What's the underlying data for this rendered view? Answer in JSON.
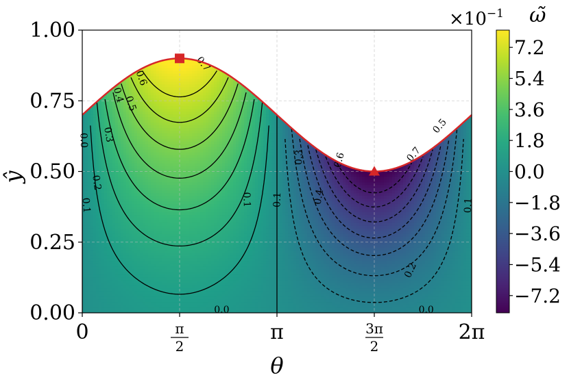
{
  "chart_data": {
    "type": "heatmap",
    "xlabel": "θ",
    "ylabel": "ŷ",
    "xlim": [
      0,
      6.283185307
    ],
    "ylim": [
      0,
      1.0
    ],
    "x_ticks": [
      {
        "value": 0,
        "label": "0",
        "kind": "plain"
      },
      {
        "value": 1.570796327,
        "num": "π",
        "den": "2",
        "kind": "frac"
      },
      {
        "value": 3.141592654,
        "label": "π",
        "kind": "plain"
      },
      {
        "value": 4.71238898,
        "num": "3π",
        "den": "2",
        "kind": "frac"
      },
      {
        "value": 6.283185307,
        "label": "2π",
        "kind": "plain"
      }
    ],
    "y_ticks": [
      {
        "value": 0.0,
        "label": "0.00"
      },
      {
        "value": 0.25,
        "label": "0.25"
      },
      {
        "value": 0.5,
        "label": "0.50"
      },
      {
        "value": 0.75,
        "label": "0.75"
      },
      {
        "value": 1.0,
        "label": "1.00"
      }
    ],
    "grid": true,
    "colormap": "viridis",
    "boundary": {
      "mean": 0.7,
      "amplitude": 0.2,
      "color": "#d62728"
    },
    "markers": [
      {
        "shape": "square",
        "x": 1.570796327,
        "y": 0.9,
        "color": "#d62728"
      },
      {
        "shape": "triangle",
        "x": 4.71238898,
        "y": 0.5,
        "color": "#d62728"
      }
    ],
    "contour_levels": [
      -0.7,
      -0.6,
      -0.5,
      -0.4,
      -0.3,
      -0.2,
      -0.1,
      0.0,
      0.1,
      0.2,
      0.3,
      0.4,
      0.5,
      0.6,
      0.7
    ],
    "contour_labels": [
      {
        "text": "0.7",
        "x": 1.95,
        "y": 0.88,
        "rot": 50
      },
      {
        "text": "0.6",
        "x": 0.95,
        "y": 0.83,
        "rot": 70
      },
      {
        "text": "0.5",
        "x": 0.78,
        "y": 0.74,
        "rot": 72
      },
      {
        "text": "0.4",
        "x": 0.58,
        "y": 0.77,
        "rot": 75
      },
      {
        "text": "0.3",
        "x": 0.42,
        "y": 0.63,
        "rot": 80
      },
      {
        "text": "0.2",
        "x": 0.23,
        "y": 0.46,
        "rot": 82
      },
      {
        "text": "0.1",
        "x": 0.06,
        "y": 0.38,
        "rot": 85
      },
      {
        "text": "0.0",
        "x": 0.02,
        "y": 0.61,
        "rot": 88
      },
      {
        "text": "0.1",
        "x": 2.65,
        "y": 0.4,
        "rot": 88
      },
      {
        "text": "0.1",
        "x": 3.15,
        "y": 0.4,
        "rot": -88
      },
      {
        "text": "0.3",
        "x": 3.5,
        "y": 0.55,
        "rot": -88
      },
      {
        "text": "0.4",
        "x": 3.82,
        "y": 0.41,
        "rot": -80
      },
      {
        "text": "0.6",
        "x": 4.15,
        "y": 0.54,
        "rot": -75
      },
      {
        "text": "0.7",
        "x": 5.35,
        "y": 0.56,
        "rot": -50
      },
      {
        "text": "0.5",
        "x": 5.77,
        "y": 0.66,
        "rot": -50
      },
      {
        "text": "0.2",
        "x": 5.3,
        "y": 0.15,
        "rot": -65
      },
      {
        "text": "0.0",
        "x": 2.25,
        "y": 0.01,
        "rot": 0
      },
      {
        "text": "0.0",
        "x": 5.55,
        "y": 0.01,
        "rot": 0
      },
      {
        "text": "0.1",
        "x": 6.23,
        "y": 0.38,
        "rot": -88
      }
    ],
    "colorbar": {
      "title": "ω̃",
      "scale_label": "×10",
      "scale_exponent": "−1",
      "min": -8.2,
      "max": 8.2,
      "ticks": [
        {
          "value": 7.2,
          "label": "7.2"
        },
        {
          "value": 5.4,
          "label": "5.4"
        },
        {
          "value": 3.6,
          "label": "3.6"
        },
        {
          "value": 1.8,
          "label": "1.8"
        },
        {
          "value": 0.0,
          "label": "0.0"
        },
        {
          "value": -1.8,
          "label": "−1.8"
        },
        {
          "value": -3.6,
          "label": "−3.6"
        },
        {
          "value": -5.4,
          "label": "−5.4"
        },
        {
          "value": -7.2,
          "label": "−7.2"
        }
      ]
    }
  }
}
